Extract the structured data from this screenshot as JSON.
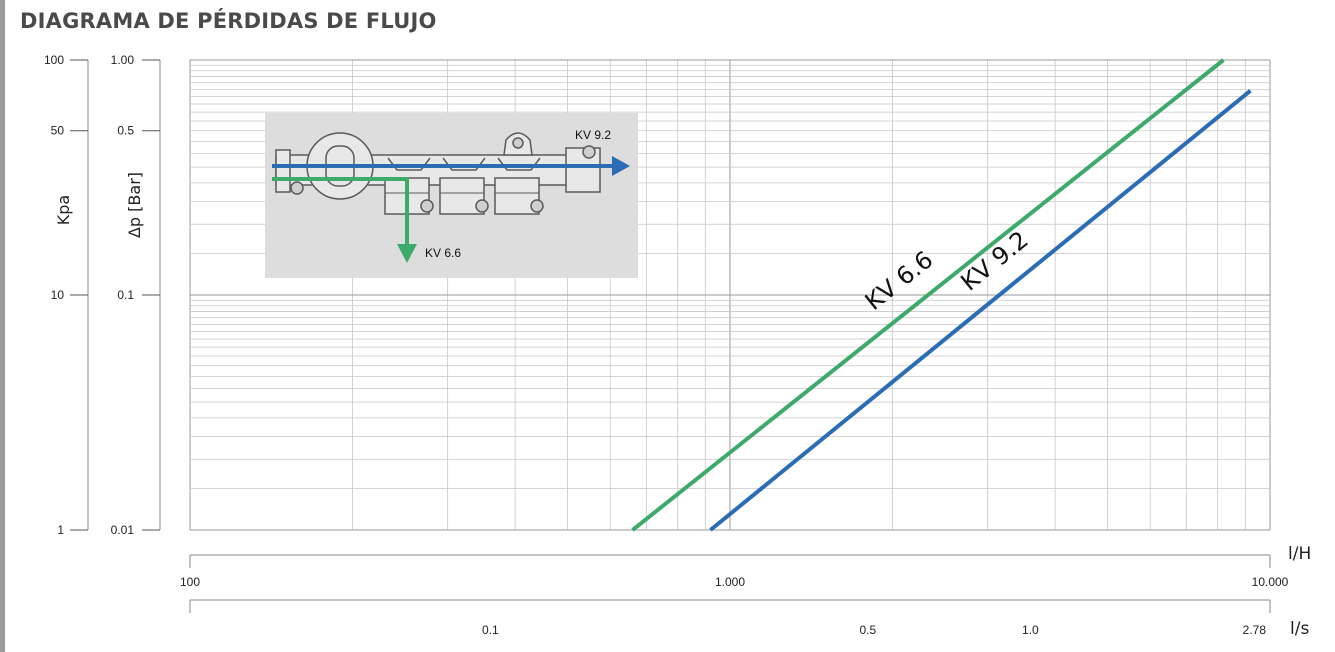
{
  "title": "DIAGRAMA DE PÉRDIDAS DE FLUJO",
  "colors": {
    "kv66": "#3daa6b",
    "kv92": "#2b6cb5",
    "grid": "#c7c7c7",
    "grid_major": "#9a9a9a",
    "inset_bg": "#dddddd"
  },
  "chart_data": {
    "type": "line",
    "x_scale": "log",
    "y_scale": "log",
    "xlim": [
      100,
      10000
    ],
    "ylim": [
      1,
      100
    ],
    "grid": true,
    "axes": {
      "kpa": {
        "label": "Kpa",
        "ticks": [
          {
            "v": 100,
            "t": "100"
          },
          {
            "v": 50,
            "t": "50"
          },
          {
            "v": 10,
            "t": "10"
          },
          {
            "v": 1,
            "t": "1"
          }
        ]
      },
      "bar": {
        "label": "Δp [Bar]",
        "ticks": [
          {
            "v": 100,
            "t": "1.00"
          },
          {
            "v": 50,
            "t": "0.5"
          },
          {
            "v": 10,
            "t": "0.1"
          },
          {
            "v": 1,
            "t": "0.01"
          }
        ]
      },
      "lh": {
        "unit": "l/H",
        "ticks": [
          {
            "v": 100,
            "t": "100"
          },
          {
            "v": 1000,
            "t": "1.000"
          },
          {
            "v": 10000,
            "t": "10.000"
          }
        ]
      },
      "ls": {
        "unit": "l/s",
        "ticks": [
          {
            "v": 360,
            "t": "0.1"
          },
          {
            "v": 1800,
            "t": "0.5"
          },
          {
            "v": 3600,
            "t": "1.0"
          },
          {
            "v": 10000,
            "t": "2.78"
          }
        ]
      }
    },
    "series": [
      {
        "name": "KV 6.6",
        "label": "KV 6.6",
        "color_key": "kv66",
        "x": [
          660,
          8200
        ],
        "y": [
          1,
          100
        ]
      },
      {
        "name": "KV 9.2",
        "label": "KV 9.2",
        "color_key": "kv92",
        "x": [
          920,
          9200
        ],
        "y": [
          1,
          74
        ]
      }
    ]
  },
  "inset": {
    "label_kv92": "KV 9.2",
    "label_kv66": "KV 6.6"
  }
}
